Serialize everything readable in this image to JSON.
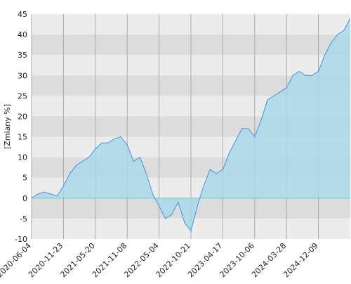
{
  "chart_data": {
    "type": "area",
    "y_label": "[Zmiany %]",
    "categories": [
      "2020-06-04",
      null,
      null,
      null,
      null,
      "2020-11-23",
      null,
      null,
      null,
      null,
      "2021-05-20",
      null,
      null,
      null,
      null,
      "2021-11-08",
      null,
      null,
      null,
      null,
      "2022-05-04",
      null,
      null,
      null,
      null,
      "2022-10-21",
      null,
      null,
      null,
      null,
      "2023-04-17",
      null,
      null,
      null,
      null,
      "2023-10-06",
      null,
      null,
      null,
      null,
      "2024-03-28",
      null,
      null,
      null,
      null,
      "2024-12-09",
      null,
      null,
      null,
      null,
      null
    ],
    "values": [
      0,
      1,
      1.5,
      1,
      0.5,
      3,
      6,
      8,
      9,
      10,
      12,
      13.5,
      13.5,
      14.5,
      15,
      13,
      9,
      10,
      6,
      1,
      -2,
      -5,
      -4,
      -1,
      -6,
      -8,
      -2,
      3,
      7,
      6,
      7,
      11,
      14,
      17,
      17,
      15,
      19,
      24,
      25,
      26,
      27,
      30,
      31,
      30,
      30,
      31,
      35,
      38,
      40,
      41,
      44
    ],
    "color": "#4a90e2",
    "fill": "#a8d8ea",
    "ylim": [
      -10,
      45
    ],
    "yticks": [
      -10,
      -5,
      0,
      5,
      10,
      15,
      20,
      25,
      30,
      35,
      40,
      45
    ],
    "grid": true
  }
}
